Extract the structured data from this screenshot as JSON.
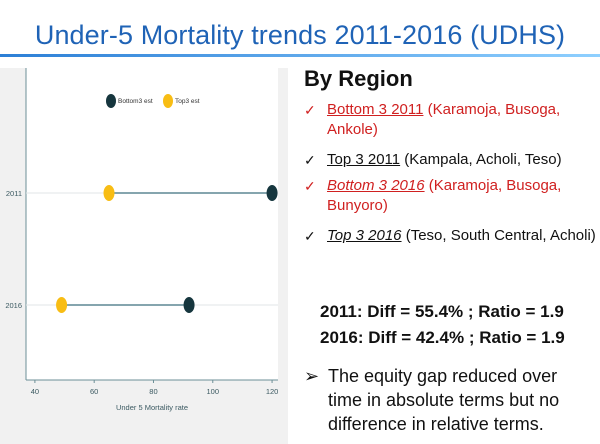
{
  "slide": {
    "title": "Under-5 Mortality trends 2011-2016 (UDHS)"
  },
  "chart_data": {
    "type": "dumbbell",
    "legend": [
      {
        "name": "Bottom3 est",
        "color": "#16363e"
      },
      {
        "name": "Top3 est",
        "color": "#f8bd14"
      }
    ],
    "legend_position": "top-center",
    "categories": [
      "2011",
      "2016"
    ],
    "series": [
      {
        "name": "Bottom3 est",
        "values": [
          120,
          92
        ]
      },
      {
        "name": "Top3 est",
        "values": [
          65,
          49
        ]
      }
    ],
    "xlabel": "Under 5 Mortality rate",
    "xlim": [
      37,
      122
    ],
    "xticks": [
      "40",
      "60",
      "80",
      "100",
      "120"
    ],
    "xtick_values": [
      40,
      60,
      80,
      100,
      120
    ],
    "connector_color": "#3c6f7d",
    "grid": true
  },
  "right": {
    "heading": "By Region",
    "bullets": [
      {
        "tick": "✓",
        "underlined": "Bottom 3  2011",
        "rest": " (Karamoja, Busoga, Ankole)"
      },
      {
        "tick": "✓",
        "underlined": "Top 3  2011",
        "rest": " (Kampala, Acholi, Teso)"
      },
      {
        "tick": "✓",
        "underlined": "Bottom 3  2016",
        "rest": " (Karamoja, Busoga, Bunyoro)"
      },
      {
        "tick": "✓",
        "underlined": " Top 3  2016",
        "rest": " (Teso, South Central, Acholi)"
      }
    ],
    "stat_2011": "2011: Diff = 55.4% ; Ratio = 1.9",
    "stat_2016": "2016: Diff = 42.4% ; Ratio = 1.9",
    "arrow": "➢",
    "equity_text": "The equity gap reduced over time in absolute terms but no difference in relative terms."
  }
}
